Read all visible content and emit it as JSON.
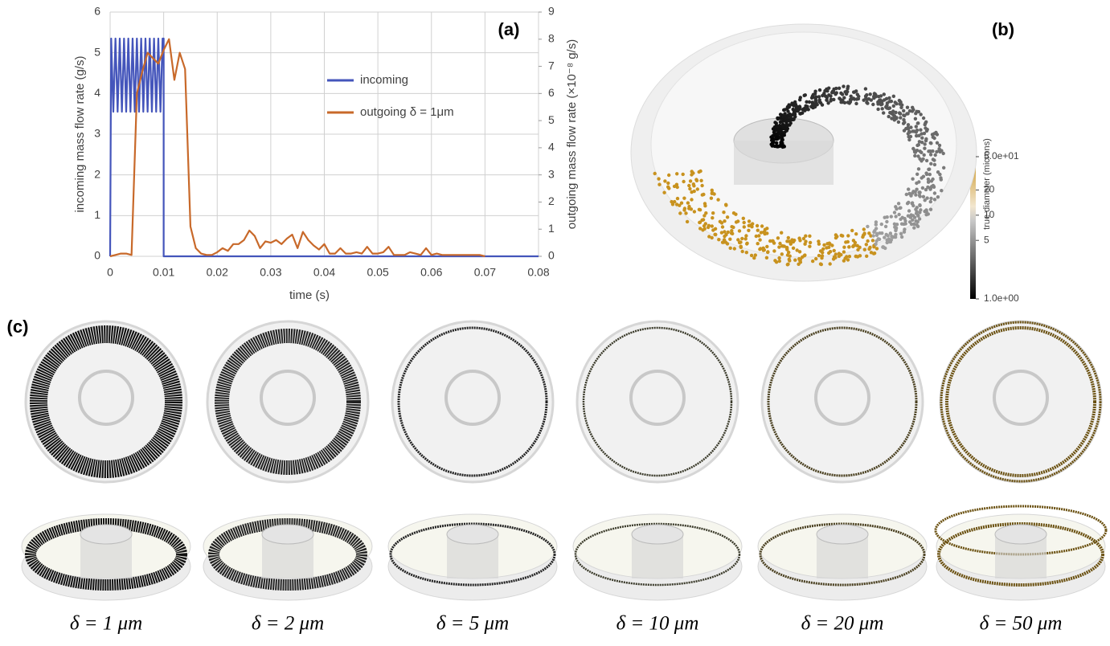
{
  "chart_data": {
    "type": "line",
    "panel_label": "(a)",
    "xlabel": "time (s)",
    "ylabel": "incoming mass flow rate (g/s)",
    "y2label": "outgoing mass flow rate (×10⁻⁸ g/s)",
    "xlim": [
      0,
      0.08
    ],
    "xticks": [
      0,
      0.01,
      0.02,
      0.03,
      0.04,
      0.05,
      0.06,
      0.07,
      0.08
    ],
    "ylim": [
      0,
      6
    ],
    "yticks": [
      0,
      1,
      2,
      3,
      4,
      5,
      6
    ],
    "y2lim": [
      0,
      9
    ],
    "y2ticks": [
      0,
      1,
      2,
      3,
      4,
      5,
      6,
      7,
      8,
      9
    ],
    "grid": true,
    "legend": "upper center",
    "series": [
      {
        "name": "incoming",
        "color": "#4455bb",
        "x": [
          0,
          0.0002,
          0.0006,
          0.001,
          0.0014,
          0.0018,
          0.0022,
          0.0026,
          0.003,
          0.0034,
          0.0038,
          0.0042,
          0.0046,
          0.005,
          0.0054,
          0.0058,
          0.0062,
          0.0066,
          0.007,
          0.0074,
          0.0078,
          0.0082,
          0.0086,
          0.009,
          0.0094,
          0.0098,
          0.01,
          0.01,
          0.08
        ],
        "values": [
          0,
          5.35,
          3.55,
          5.35,
          3.55,
          5.35,
          3.55,
          5.35,
          3.55,
          5.35,
          3.55,
          5.35,
          3.55,
          5.35,
          3.55,
          5.35,
          3.55,
          5.35,
          3.55,
          5.35,
          3.55,
          5.35,
          3.55,
          5.35,
          3.55,
          5.35,
          5.35,
          0,
          0
        ]
      },
      {
        "name": "outgoing δ = 1μm",
        "color": "#c8692a",
        "axis": "y2",
        "x": [
          0,
          0.001,
          0.002,
          0.003,
          0.004,
          0.005,
          0.006,
          0.007,
          0.008,
          0.009,
          0.01,
          0.011,
          0.012,
          0.013,
          0.014,
          0.015,
          0.016,
          0.017,
          0.018,
          0.019,
          0.02,
          0.021,
          0.022,
          0.023,
          0.024,
          0.025,
          0.026,
          0.027,
          0.028,
          0.029,
          0.03,
          0.031,
          0.032,
          0.033,
          0.034,
          0.035,
          0.036,
          0.037,
          0.038,
          0.039,
          0.04,
          0.041,
          0.042,
          0.043,
          0.044,
          0.045,
          0.046,
          0.047,
          0.048,
          0.049,
          0.05,
          0.051,
          0.052,
          0.053,
          0.054,
          0.055,
          0.056,
          0.057,
          0.058,
          0.059,
          0.06,
          0.061,
          0.062,
          0.063,
          0.064,
          0.065,
          0.066,
          0.067,
          0.068,
          0.069,
          0.07
        ],
        "values": [
          0,
          0.05,
          0.1,
          0.1,
          0.05,
          6.0,
          6.8,
          7.5,
          7.3,
          7.1,
          7.6,
          8.0,
          6.5,
          7.5,
          6.9,
          1.1,
          0.3,
          0.1,
          0.05,
          0.05,
          0.15,
          0.3,
          0.2,
          0.45,
          0.45,
          0.6,
          0.95,
          0.75,
          0.3,
          0.55,
          0.5,
          0.6,
          0.45,
          0.65,
          0.8,
          0.3,
          0.9,
          0.6,
          0.4,
          0.25,
          0.45,
          0.1,
          0.1,
          0.3,
          0.1,
          0.1,
          0.15,
          0.1,
          0.35,
          0.1,
          0.1,
          0.15,
          0.35,
          0.05,
          0.05,
          0.05,
          0.15,
          0.1,
          0.05,
          0.3,
          0.05,
          0.1,
          0.05,
          0.05,
          0.05,
          0.05,
          0.05,
          0.05,
          0.05,
          0.05,
          0
        ]
      }
    ]
  },
  "panel_b": {
    "panel_label": "(b)",
    "colorbar": {
      "title": "true diameter (microns)",
      "log": true,
      "lim": [
        1,
        50
      ],
      "ticks": [
        {
          "value": 50,
          "label": "5.0e+01"
        },
        20,
        10,
        5,
        {
          "value": 1,
          "label": "1.0e+00"
        }
      ]
    }
  },
  "panel_c": {
    "panel_label": "(c)",
    "labels": [
      "δ = 1 μm",
      "δ = 2 μm",
      "δ = 5 μm",
      "δ = 10 μm",
      "δ = 20 μm",
      "δ = 50 μm"
    ]
  }
}
